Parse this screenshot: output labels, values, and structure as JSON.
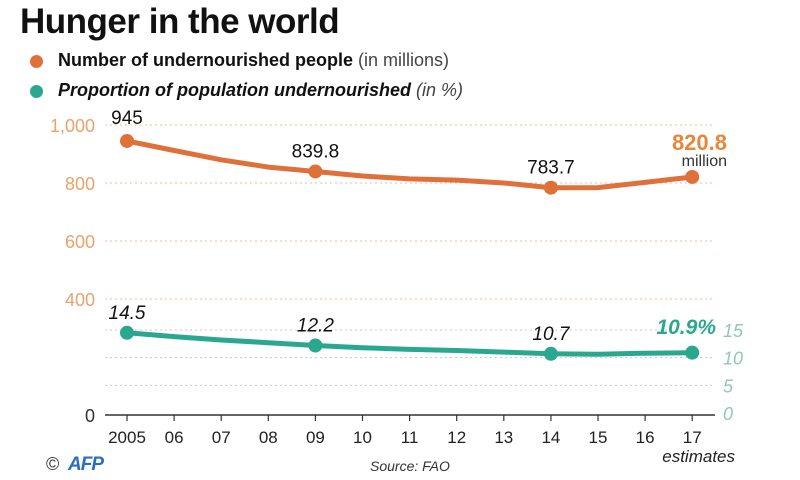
{
  "chart_data": {
    "type": "line",
    "title": "Hunger in the world",
    "categories": [
      "2005",
      "06",
      "07",
      "08",
      "09",
      "10",
      "11",
      "12",
      "13",
      "14",
      "15",
      "16",
      "17"
    ],
    "series": [
      {
        "name": "Number of undernourished people",
        "unit_note": "(in millions)",
        "axis": "left",
        "color": "#e0703a",
        "values": [
          945,
          912,
          880,
          855,
          839.8,
          824,
          814,
          810,
          800,
          783.7,
          784,
          802,
          820.8
        ]
      },
      {
        "name": "Proportion of population undernourished",
        "unit_note": "(in %)",
        "axis": "right",
        "color": "#2aa88f",
        "values": [
          14.5,
          13.8,
          13.2,
          12.7,
          12.2,
          11.8,
          11.5,
          11.3,
          11.0,
          10.7,
          10.6,
          10.8,
          10.9
        ]
      }
    ],
    "left_axis": {
      "ticks": [
        "0",
        "400",
        "600",
        "800",
        "1,000"
      ],
      "tick_values": [
        0,
        400,
        600,
        800,
        1000
      ],
      "ylim": [
        0,
        1000
      ],
      "color": "#e8a36a"
    },
    "right_axis": {
      "ticks": [
        "0",
        "5",
        "10",
        "15"
      ],
      "tick_values": [
        0,
        5,
        10,
        15
      ],
      "ylim": [
        0,
        15
      ],
      "color": "#8fc7bb"
    },
    "data_labels": {
      "left": [
        {
          "index": 0,
          "text": "945"
        },
        {
          "index": 4,
          "text": "839.8"
        },
        {
          "index": 9,
          "text": "783.7"
        }
      ],
      "right": [
        {
          "index": 0,
          "text": "14.5"
        },
        {
          "index": 4,
          "text": "12.2"
        },
        {
          "index": 9,
          "text": "10.7"
        }
      ],
      "highlight_left": "820.8",
      "highlight_left_unit": "million",
      "highlight_right": "10.9%"
    },
    "x_note": "estimates",
    "grid": true
  },
  "footer": {
    "source": "Source: FAO",
    "copyright": "©",
    "agency": "AFP"
  }
}
